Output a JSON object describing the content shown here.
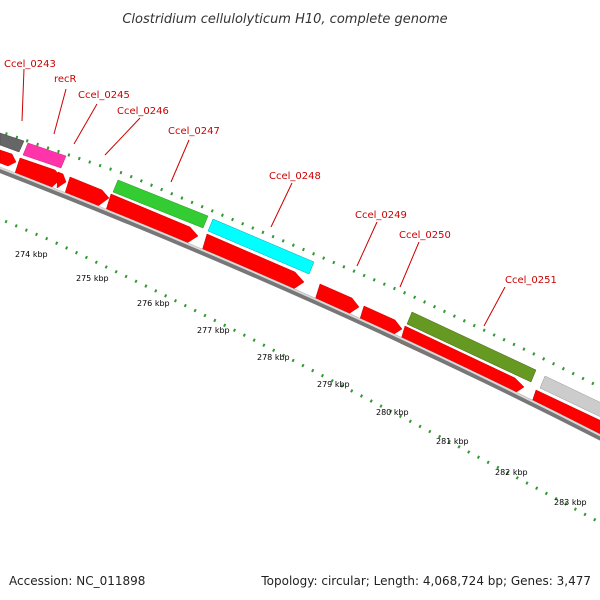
{
  "title": "Clostridium cellulolyticum H10, complete genome",
  "footer": {
    "accession": "Accession: NC_011898",
    "summary": "Topology: circular; Length: 4,068,724 bp; Genes: 3,477"
  },
  "colors": {
    "cds": "#ff0000",
    "label": "#cc0000",
    "tick": "#339933",
    "backbone": "#888888"
  },
  "gene_labels": [
    "Ccel_0243",
    "recR",
    "Ccel_0245",
    "Ccel_0246",
    "Ccel_0247",
    "Ccel_0248",
    "Ccel_0249",
    "Ccel_0250",
    "Ccel_0251"
  ],
  "genes": [
    {
      "name": "Ccel_0243",
      "color": "#666666"
    },
    {
      "name": "recR",
      "color": "#ff33aa"
    },
    {
      "name": "Ccel_0247",
      "color": "#33cc33"
    },
    {
      "name": "Ccel_0248",
      "color": "#00ffff"
    },
    {
      "name": "Ccel_0251",
      "color": "#669922"
    },
    {
      "name": "",
      "color": "#cccccc"
    }
  ],
  "kbp_labels": [
    "274 kbp",
    "275 kbp",
    "276 kbp",
    "277 kbp",
    "278 kbp",
    "279 kbp",
    "280 kbp",
    "281 kbp",
    "282 kbp",
    "283 kbp"
  ]
}
